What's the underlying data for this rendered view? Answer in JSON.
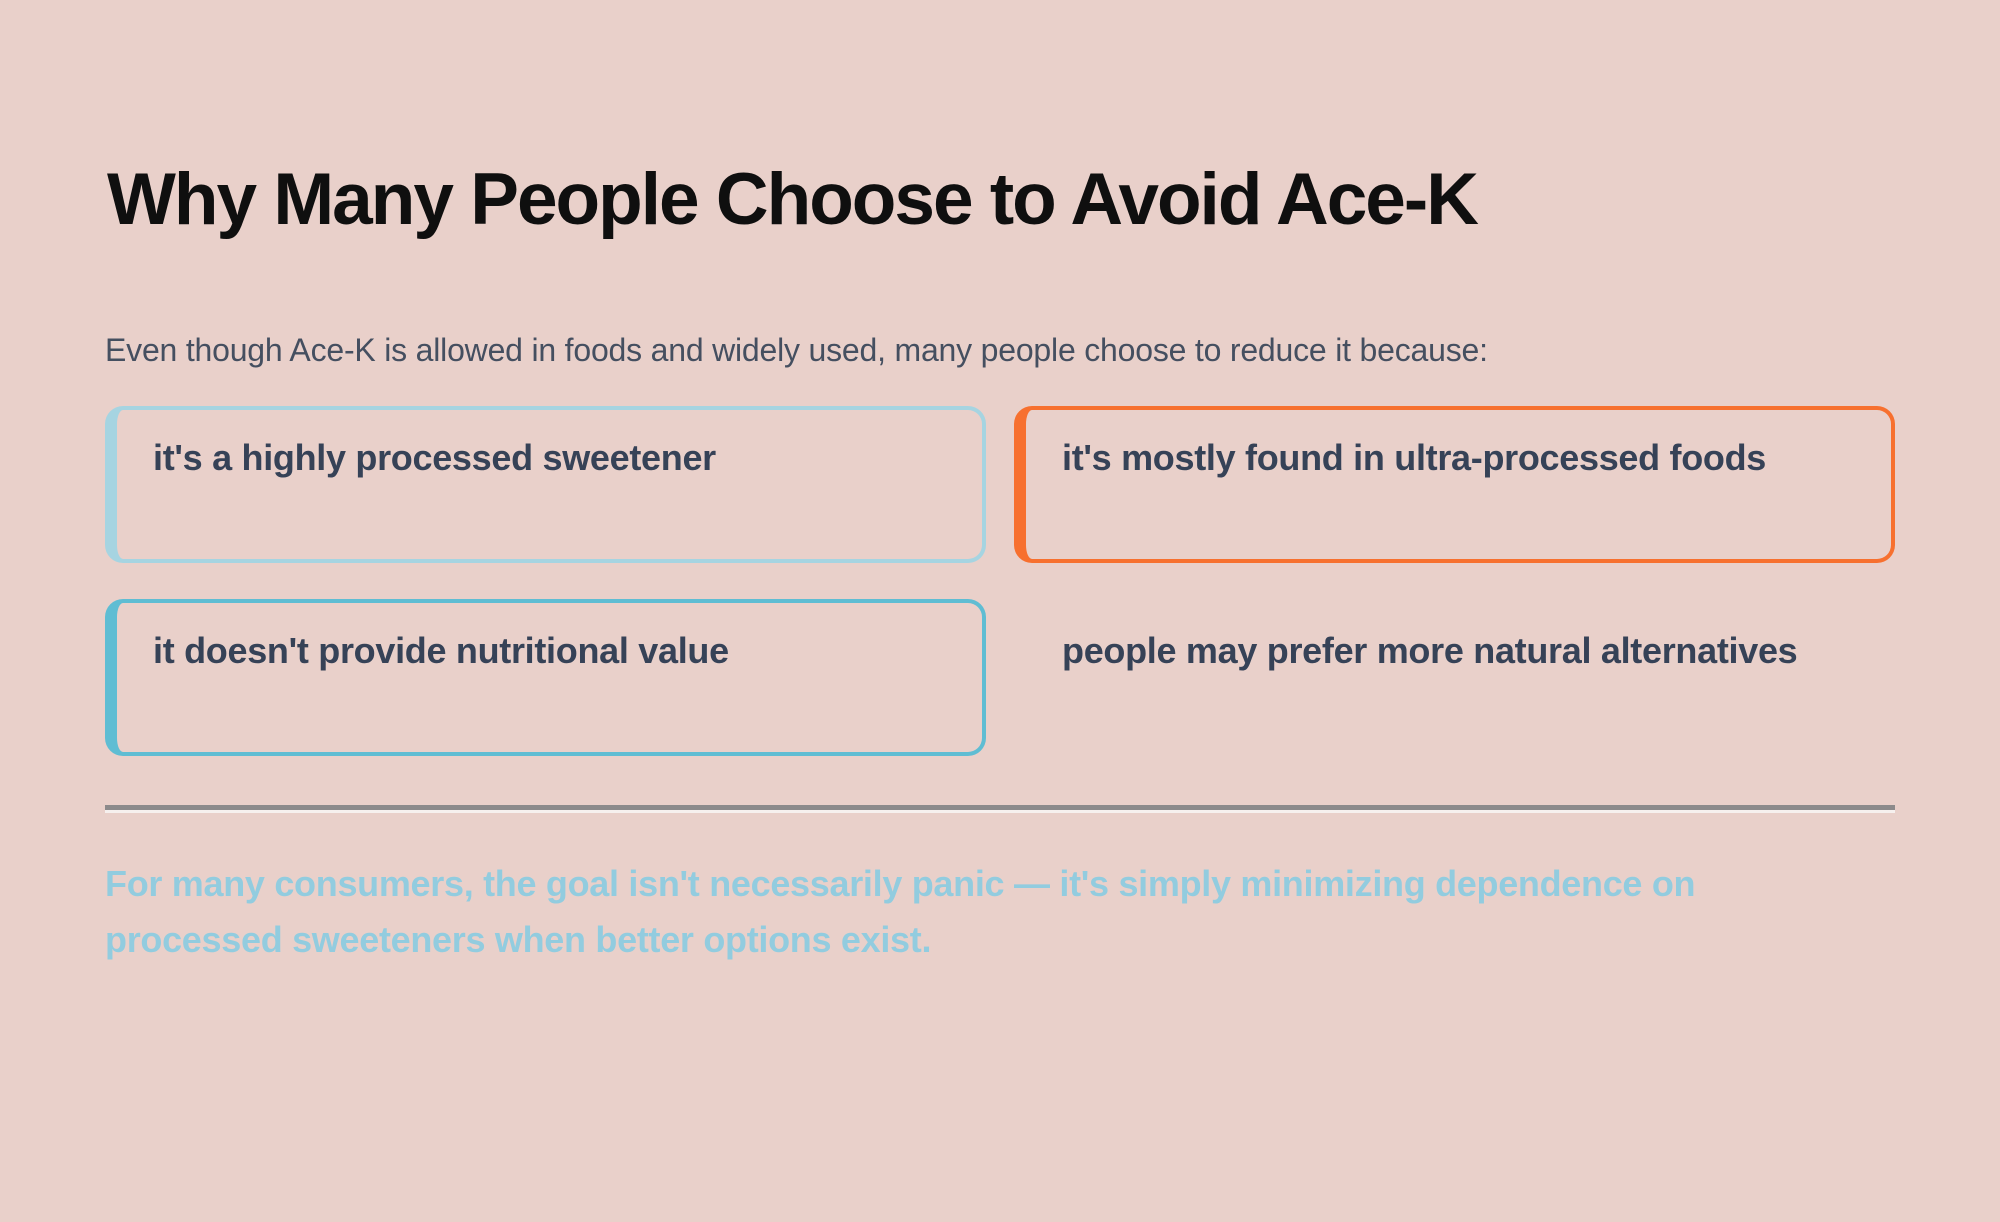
{
  "page": {
    "background_color": "#e9d0ca",
    "title": "Why Many People Choose to Avoid Ace-K",
    "subtitle": "Even though Ace-K is allowed in foods and widely used, many people choose to reduce it because:"
  },
  "reasons": [
    {
      "text": "it's a highly processed sweetener",
      "accent_color": "#a6d4e1"
    },
    {
      "text": "it's mostly found in ultra-processed foods",
      "accent_color": "#f7702f"
    },
    {
      "text": "it doesn't provide nutritional value",
      "accent_color": "#5fbdd3"
    },
    {
      "text": "people may prefer more natural alternatives",
      "accent_color": "transparent"
    }
  ],
  "footer": {
    "text_color": "#92ccdf",
    "lines": [
      "For many consumers, the goal isn't necessarily panic — it's simply minimizing dependence on",
      "processed sweeteners when better options exist."
    ]
  }
}
